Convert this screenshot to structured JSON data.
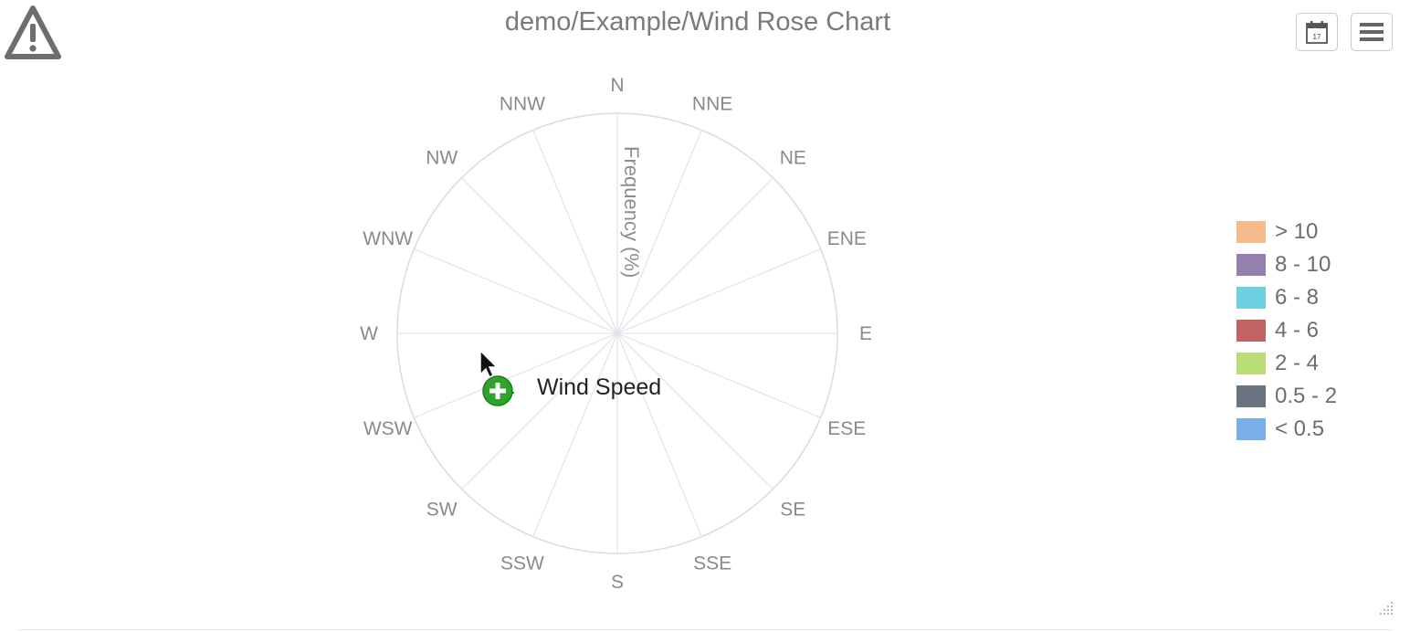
{
  "page": {
    "title": "demo/Example/Wind Rose Chart"
  },
  "toolbar": {
    "calendar_day": "17",
    "calendar_icon": "calendar-icon",
    "menu_icon": "hamburger-menu-icon",
    "warning_icon": "warning-triangle-icon"
  },
  "drag_indicator": {
    "label": "Wind Speed",
    "icon": "green-plus-icon"
  },
  "chart_data": {
    "type": "wind-rose",
    "title": "demo/Example/Wind Rose Chart",
    "axis_title": "Frequency (%)",
    "directions": [
      "N",
      "NNE",
      "NE",
      "ENE",
      "E",
      "ESE",
      "SE",
      "SSE",
      "S",
      "SSW",
      "SW",
      "WSW",
      "W",
      "WNW",
      "NW",
      "NNW"
    ],
    "series": [
      {
        "name": "> 10",
        "color": "#f7bb8b",
        "values": []
      },
      {
        "name": "8 - 10",
        "color": "#9580ad",
        "values": []
      },
      {
        "name": "6 - 8",
        "color": "#6ed0e1",
        "values": []
      },
      {
        "name": "4 - 6",
        "color": "#c26364",
        "values": []
      },
      {
        "name": "2 - 4",
        "color": "#b8dc76",
        "values": []
      },
      {
        "name": "0.5 - 2",
        "color": "#6a7480",
        "values": []
      },
      {
        "name": "< 0.5",
        "color": "#7aaee8",
        "values": []
      }
    ],
    "legend_position": "right",
    "grid": true
  }
}
